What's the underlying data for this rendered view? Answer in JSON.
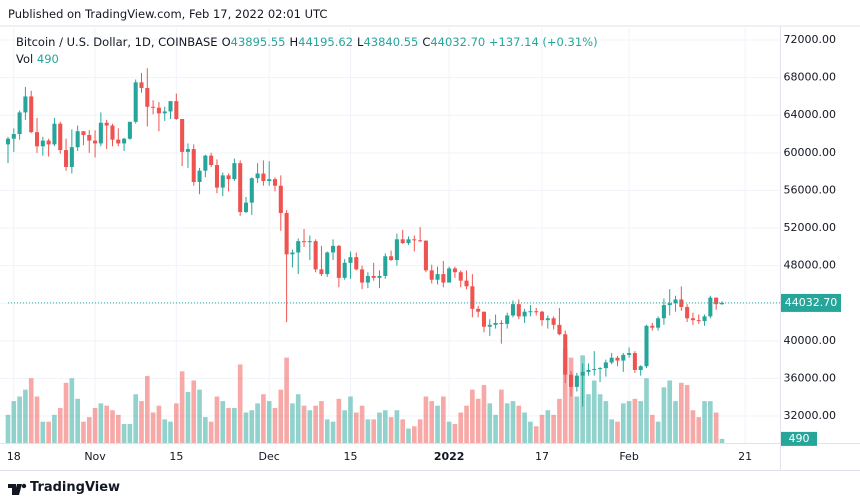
{
  "published": "Published on TradingView.com, Feb 17, 2022 02:01 UTC",
  "footer": "TradingView",
  "chart_data": {
    "type": "candlestick",
    "symbol": "Bitcoin / U.S. Dollar, 1D, COINBASE",
    "ohlc_legend": [
      {
        "key": "O",
        "text": "43895.55"
      },
      {
        "key": "H",
        "text": "44195.62"
      },
      {
        "key": "L",
        "text": "43840.55"
      },
      {
        "key": "C",
        "text": "44032.70"
      }
    ],
    "change": "+137.14 (+0.31%)",
    "volume_legend": {
      "key": "Vol",
      "text": "490"
    },
    "last_price_label": "44032.70",
    "last_volume_label": "490",
    "up_color": "#26a69a",
    "down_color": "#ef5350",
    "grid": true,
    "xlim": [
      0,
      133
    ],
    "xticks": [
      {
        "value": 1,
        "label": "18"
      },
      {
        "value": 15,
        "label": "Nov"
      },
      {
        "value": 29,
        "label": "15"
      },
      {
        "value": 45,
        "label": "Dec"
      },
      {
        "value": 59,
        "label": "15"
      },
      {
        "value": 76,
        "label": "2022"
      },
      {
        "value": 92,
        "label": "17"
      },
      {
        "value": 107,
        "label": "Feb"
      },
      {
        "value": 127,
        "label": "21"
      }
    ],
    "ylim": [
      29450,
      73280
    ],
    "yticks": [
      {
        "value": 32000,
        "label": "32000.00"
      },
      {
        "value": 36000,
        "label": "36000.00"
      },
      {
        "value": 40000,
        "label": "40000.00"
      },
      {
        "value": 44000,
        "label": "44000.00"
      },
      {
        "value": 48000,
        "label": "48000.00"
      },
      {
        "value": 52000,
        "label": "52000.00"
      },
      {
        "value": 56000,
        "label": "56000.00"
      },
      {
        "value": 60000,
        "label": "60000.00"
      },
      {
        "value": 64000,
        "label": "64000.00"
      },
      {
        "value": 68000,
        "label": "68000.00"
      },
      {
        "value": 72000,
        "label": "72000.00"
      }
    ],
    "volume_lim": [
      0,
      180000
    ],
    "open": [
      60900,
      61500,
      62000,
      64300,
      66000,
      62200,
      60700,
      61300,
      60900,
      63100,
      60300,
      58500,
      60600,
      62300,
      61900,
      61300,
      61000,
      63200,
      62900,
      61400,
      61000,
      61500,
      63300,
      67500,
      66900,
      64900,
      64800,
      64200,
      64400,
      65500,
      63600,
      60100,
      60400,
      56900,
      58100,
      59700,
      58700,
      56300,
      57600,
      57200,
      58900,
      53700,
      54700,
      57300,
      57800,
      57000,
      57200,
      56500,
      53600,
      49200,
      49400,
      50600,
      50500,
      50600,
      47600,
      47100,
      49400,
      50100,
      46700,
      48300,
      48900,
      47600,
      46200,
      46900,
      46700,
      46900,
      49000,
      48600,
      50800,
      50400,
      50800,
      50700,
      50650,
      47500,
      46500,
      47100,
      46200,
      47700,
      47300,
      46400,
      45800,
      43400,
      43100,
      41500,
      41700,
      41900,
      41800,
      42700,
      43900,
      42600,
      43100,
      43150,
      43100,
      42200,
      42400,
      41700,
      40700,
      36400,
      35100,
      36300,
      36700,
      36900,
      37000,
      37100,
      37700,
      38200,
      37900,
      38500,
      38700,
      36900,
      37300,
      41600,
      41400,
      42400,
      43800,
      44000,
      44400,
      43600,
      42400,
      42200,
      42100,
      42600,
      44600,
      43895.55
    ],
    "high": [
      61700,
      62600,
      64500,
      67000,
      66600,
      63700,
      61700,
      61500,
      63700,
      63300,
      61500,
      62500,
      62900,
      62300,
      62400,
      62400,
      64300,
      63500,
      63100,
      62600,
      61600,
      63300,
      67800,
      68500,
      69000,
      65600,
      65400,
      64900,
      65500,
      66300,
      63600,
      61000,
      60900,
      58400,
      59800,
      60000,
      59300,
      57900,
      57800,
      59400,
      59200,
      55300,
      57400,
      58900,
      59200,
      59100,
      57400,
      57600,
      53900,
      49700,
      50900,
      51900,
      51200,
      50800,
      50100,
      49500,
      50800,
      50200,
      48700,
      49500,
      49400,
      48000,
      47300,
      48300,
      47500,
      49300,
      49600,
      51400,
      51800,
      51100,
      51200,
      52100,
      50700,
      48100,
      47900,
      48500,
      47900,
      47900,
      47500,
      47500,
      47100,
      43700,
      43100,
      42300,
      42800,
      42200,
      43000,
      44300,
      44400,
      43400,
      43800,
      43500,
      43200,
      42700,
      42600,
      43500,
      41100,
      36800,
      36600,
      37600,
      37600,
      38900,
      37200,
      38000,
      38700,
      38400,
      38700,
      39300,
      38900,
      37400,
      41700,
      41900,
      42600,
      44500,
      45500,
      44800,
      45800,
      43900,
      43000,
      42800,
      42800,
      44800,
      44600,
      44195.62
    ],
    "low": [
      58900,
      60100,
      61400,
      63500,
      62100,
      60000,
      59700,
      59600,
      60700,
      59900,
      58100,
      57800,
      60200,
      60800,
      60000,
      59500,
      60700,
      60400,
      60700,
      60700,
      60200,
      61400,
      63100,
      66400,
      62800,
      64100,
      62300,
      63400,
      63600,
      63500,
      58600,
      58400,
      56500,
      55600,
      57400,
      58500,
      55700,
      55400,
      55900,
      57000,
      53300,
      53600,
      53400,
      56800,
      56500,
      56500,
      55900,
      51700,
      42000,
      47800,
      47100,
      50000,
      48600,
      47300,
      46900,
      46800,
      48600,
      45700,
      46500,
      46600,
      47500,
      45500,
      45600,
      46400,
      45600,
      46600,
      48500,
      48000,
      50300,
      50200,
      49500,
      50500,
      47300,
      46100,
      46000,
      45700,
      46200,
      46700,
      45700,
      45500,
      42500,
      42500,
      40900,
      40500,
      41300,
      39700,
      41300,
      42500,
      42300,
      41900,
      42600,
      42700,
      41600,
      41300,
      41200,
      40600,
      35500,
      34100,
      34600,
      33000,
      36300,
      36300,
      35600,
      36200,
      37500,
      37300,
      36700,
      38200,
      36600,
      36300,
      37100,
      41100,
      41100,
      41700,
      42700,
      43100,
      43200,
      42000,
      41700,
      41800,
      41600,
      42400,
      43300,
      43840.55
    ],
    "close": [
      61500,
      62000,
      64300,
      66000,
      62200,
      60700,
      61300,
      60900,
      63100,
      60300,
      58500,
      60600,
      62300,
      61900,
      61300,
      61000,
      63200,
      62900,
      61400,
      61000,
      61500,
      63300,
      67500,
      66900,
      64900,
      64800,
      64200,
      64400,
      65500,
      63600,
      60100,
      60400,
      56900,
      58100,
      59700,
      58700,
      56300,
      57600,
      57200,
      58900,
      53700,
      54700,
      57300,
      57800,
      57000,
      57200,
      56500,
      53600,
      49200,
      49400,
      50600,
      50500,
      50600,
      47600,
      47100,
      49400,
      50100,
      46700,
      48300,
      48900,
      47600,
      46200,
      46900,
      46700,
      46900,
      49000,
      48600,
      50800,
      50400,
      50800,
      50700,
      50650,
      47500,
      46500,
      47100,
      46200,
      47700,
      47300,
      46400,
      45800,
      43400,
      43100,
      41500,
      41700,
      41900,
      41800,
      42700,
      43900,
      42600,
      43100,
      43150,
      43100,
      42200,
      42400,
      41700,
      40700,
      36400,
      35100,
      36300,
      36700,
      36900,
      37000,
      37100,
      37700,
      38200,
      37900,
      38500,
      38700,
      36900,
      37300,
      41600,
      41400,
      42400,
      43800,
      44000,
      44400,
      43600,
      42400,
      42200,
      42100,
      42600,
      44600,
      43900,
      44032.7
    ],
    "volume": [
      11000,
      17000,
      19000,
      22000,
      27000,
      19000,
      8000,
      8000,
      11000,
      14000,
      25000,
      27000,
      18000,
      8000,
      10000,
      14000,
      16000,
      15000,
      13000,
      11000,
      7000,
      7000,
      20000,
      17000,
      28000,
      12000,
      15000,
      9000,
      8000,
      16000,
      30000,
      21000,
      26000,
      22000,
      10000,
      8000,
      19000,
      17000,
      14000,
      14000,
      33000,
      12000,
      13000,
      16000,
      20000,
      17000,
      14000,
      22000,
      36000,
      16000,
      20000,
      15000,
      13000,
      15000,
      17000,
      9000,
      8000,
      18000,
      13000,
      19000,
      12000,
      15000,
      9000,
      9000,
      12000,
      13000,
      10000,
      13000,
      9000,
      5000,
      6000,
      9000,
      19000,
      17000,
      15000,
      19000,
      8000,
      7000,
      12000,
      15000,
      22000,
      18000,
      24000,
      16000,
      11000,
      22000,
      16000,
      17000,
      15000,
      12000,
      8000,
      6000,
      11000,
      13000,
      11000,
      18000,
      40000,
      36000,
      19000,
      37000,
      20000,
      26000,
      20000,
      17000,
      9000,
      8000,
      16000,
      17000,
      18000,
      17000,
      27000,
      11000,
      8000,
      23000,
      26000,
      17000,
      25000,
      24000,
      13000,
      10000,
      17000,
      17000,
      12000,
      490
    ]
  }
}
